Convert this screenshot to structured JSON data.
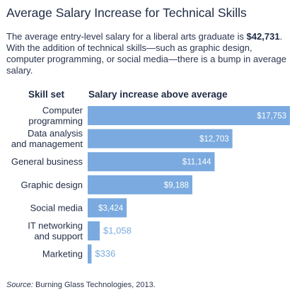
{
  "title": "Average Salary Increase for Technical Skills",
  "subtitle": {
    "before": "The average entry-level salary for a liberal arts graduate is ",
    "amount": "$42,731",
    "after": ". With the addition of technical skills—such as graphic design, computer programming, or social media—there is a bump in average salary."
  },
  "source": {
    "label": "Source:",
    "text": " Burning Glass Technologies, 2013."
  },
  "colors": {
    "bar": "#7aaadf",
    "label_inside": "#ffffff",
    "label_outside": "#7aaadf",
    "text": "#1f2b45"
  },
  "chart_data": {
    "type": "bar",
    "orientation": "horizontal",
    "category_header": "Skill set",
    "value_header": "Salary increase above average",
    "categories": [
      [
        "Computer",
        "programming"
      ],
      [
        "Data analysis",
        "and management"
      ],
      [
        "General business"
      ],
      [
        "Graphic design"
      ],
      [
        "Social media"
      ],
      [
        "IT networking",
        "and support"
      ],
      [
        "Marketing"
      ]
    ],
    "values": [
      17753,
      12703,
      11144,
      9188,
      3424,
      1058,
      336
    ],
    "value_labels": [
      "$17,753",
      "$12,703",
      "$11,144",
      "$9,188",
      "$3,424",
      "$1,058",
      "$336"
    ],
    "xlim": [
      0,
      17753
    ]
  }
}
